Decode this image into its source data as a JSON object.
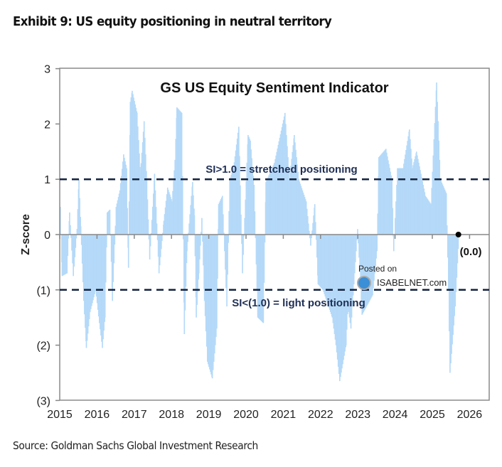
{
  "header": {
    "title": "Exhibit 9: US equity positioning in neutral territory"
  },
  "footer": {
    "source": "Source: Goldman Sachs Global Investment Research"
  },
  "watermark": {
    "line1": "Posted on",
    "line2": "ISABELNET.com"
  },
  "colors": {
    "bars": "#b5d9f8",
    "dashed": "#14233f",
    "annotation": "#1f2f55"
  },
  "chart_data": {
    "type": "bar",
    "title": "GS US Equity  Sentiment Indicator",
    "xlabel": "",
    "ylabel": "Z-score",
    "xlim": [
      2015,
      2026
    ],
    "ylim": [
      -3,
      3
    ],
    "x_ticks": [
      "2015",
      "2016",
      "2017",
      "2018",
      "2019",
      "2020",
      "2021",
      "2022",
      "2023",
      "2024",
      "2025",
      "2026"
    ],
    "y_ticks": [
      {
        "value": 3,
        "label": "3"
      },
      {
        "value": 2,
        "label": "2"
      },
      {
        "value": 1,
        "label": "1"
      },
      {
        "value": 0,
        "label": "0"
      },
      {
        "value": -1,
        "label": "(1)"
      },
      {
        "value": -2,
        "label": "(2)"
      },
      {
        "value": -3,
        "label": "(3)"
      }
    ],
    "reference_lines": [
      {
        "value": 1,
        "label": "SI>1.0 = stretched positioning"
      },
      {
        "value": -1,
        "label": "SI<(1.0) = light positioning"
      }
    ],
    "last_value": {
      "x": 2025.7,
      "y": 0.0,
      "label": "(0.0)"
    },
    "series": [
      {
        "name": "GS US Equity Sentiment Indicator",
        "points": [
          [
            2015.0,
            0.5
          ],
          [
            2015.05,
            -0.75
          ],
          [
            2015.18,
            -0.7
          ],
          [
            2015.25,
            0.4
          ],
          [
            2015.35,
            -0.75
          ],
          [
            2015.45,
            0.1
          ],
          [
            2015.5,
            1.0
          ],
          [
            2015.55,
            0.15
          ],
          [
            2015.63,
            -1.2
          ],
          [
            2015.7,
            -2.05
          ],
          [
            2015.8,
            -1.4
          ],
          [
            2015.95,
            -1.0
          ],
          [
            2016.05,
            -1.6
          ],
          [
            2016.13,
            -2.05
          ],
          [
            2016.2,
            -1.5
          ],
          [
            2016.26,
            0.4
          ],
          [
            2016.33,
            0.45
          ],
          [
            2016.4,
            -1.2
          ],
          [
            2016.5,
            0.5
          ],
          [
            2016.6,
            0.8
          ],
          [
            2016.7,
            1.45
          ],
          [
            2016.78,
            1.2
          ],
          [
            2016.83,
            -0.6
          ],
          [
            2016.88,
            2.4
          ],
          [
            2016.93,
            2.6
          ],
          [
            2017.06,
            2.2
          ],
          [
            2017.15,
            1.1
          ],
          [
            2017.25,
            2.05
          ],
          [
            2017.32,
            1.0
          ],
          [
            2017.4,
            -0.45
          ],
          [
            2017.53,
            1.1
          ],
          [
            2017.65,
            -0.7
          ],
          [
            2017.78,
            0.25
          ],
          [
            2017.88,
            0.85
          ],
          [
            2018.0,
            0.6
          ],
          [
            2018.08,
            1.35
          ],
          [
            2018.13,
            2.3
          ],
          [
            2018.26,
            2.2
          ],
          [
            2018.33,
            -1.8
          ],
          [
            2018.4,
            -0.3
          ],
          [
            2018.55,
            0.95
          ],
          [
            2018.6,
            0.35
          ],
          [
            2018.65,
            -1.5
          ],
          [
            2018.72,
            -0.7
          ],
          [
            2018.8,
            0.3
          ],
          [
            2018.87,
            -1.2
          ],
          [
            2018.95,
            -2.3
          ],
          [
            2019.08,
            -2.6
          ],
          [
            2019.2,
            -1.7
          ],
          [
            2019.25,
            0.55
          ],
          [
            2019.35,
            0.7
          ],
          [
            2019.47,
            -1.3
          ],
          [
            2019.55,
            1.0
          ],
          [
            2019.65,
            1.2
          ],
          [
            2019.79,
            1.95
          ],
          [
            2019.89,
            -0.7
          ],
          [
            2020.04,
            1.8
          ],
          [
            2020.1,
            1.7
          ],
          [
            2020.2,
            0.9
          ],
          [
            2020.3,
            -1.5
          ],
          [
            2020.45,
            -1.6
          ],
          [
            2020.52,
            0.95
          ],
          [
            2020.75,
            1.3
          ],
          [
            2021.03,
            2.2
          ],
          [
            2021.15,
            1.0
          ],
          [
            2021.28,
            1.8
          ],
          [
            2021.4,
            1.0
          ],
          [
            2021.6,
            0.6
          ],
          [
            2021.72,
            -0.2
          ],
          [
            2021.83,
            0.55
          ],
          [
            2021.92,
            -0.9
          ],
          [
            2022.05,
            -1.0
          ],
          [
            2022.3,
            -1.5
          ],
          [
            2022.4,
            -2.0
          ],
          [
            2022.5,
            -2.65
          ],
          [
            2022.67,
            -2.0
          ],
          [
            2022.72,
            -1.3
          ],
          [
            2022.8,
            -1.7
          ],
          [
            2022.98,
            0.1
          ],
          [
            2023.1,
            -1.45
          ],
          [
            2023.38,
            -1.1
          ],
          [
            2023.5,
            -0.3
          ],
          [
            2023.55,
            1.4
          ],
          [
            2023.74,
            1.55
          ],
          [
            2023.9,
            1.0
          ],
          [
            2023.95,
            -0.3
          ],
          [
            2024.05,
            1.2
          ],
          [
            2024.2,
            1.2
          ],
          [
            2024.37,
            1.9
          ],
          [
            2024.45,
            1.2
          ],
          [
            2024.56,
            1.5
          ],
          [
            2024.8,
            0.7
          ],
          [
            2024.95,
            0.55
          ],
          [
            2025.1,
            2.75
          ],
          [
            2025.2,
            1.0
          ],
          [
            2025.36,
            0.75
          ],
          [
            2025.42,
            -1.0
          ],
          [
            2025.46,
            -2.5
          ],
          [
            2025.6,
            -1.3
          ],
          [
            2025.7,
            0.0
          ]
        ]
      }
    ]
  }
}
